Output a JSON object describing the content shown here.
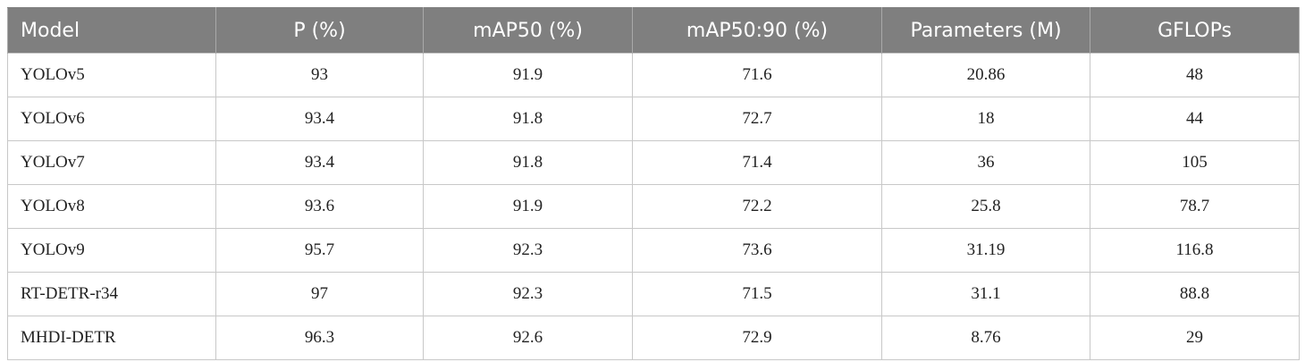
{
  "table": {
    "headers": [
      "Model",
      "P (%)",
      "mAP50 (%)",
      "mAP50:90 (%)",
      "Parameters (M)",
      "GFLOPs"
    ],
    "rows": [
      [
        "YOLOv5",
        "93",
        "91.9",
        "71.6",
        "20.86",
        "48"
      ],
      [
        "YOLOv6",
        "93.4",
        "91.8",
        "72.7",
        "18",
        "44"
      ],
      [
        "YOLOv7",
        "93.4",
        "91.8",
        "71.4",
        "36",
        "105"
      ],
      [
        "YOLOv8",
        "93.6",
        "91.9",
        "72.2",
        "25.8",
        "78.7"
      ],
      [
        "YOLOv9",
        "95.7",
        "92.3",
        "73.6",
        "31.19",
        "116.8"
      ],
      [
        "RT-DETR-r34",
        "97",
        "92.3",
        "71.5",
        "31.1",
        "88.8"
      ],
      [
        "MHDI-DETR",
        "96.3",
        "92.6",
        "72.9",
        "8.76",
        "29"
      ]
    ]
  },
  "colors": {
    "header_bg": "#7f7f7f",
    "header_text": "#ffffff",
    "grid": "#c8c8c8"
  }
}
